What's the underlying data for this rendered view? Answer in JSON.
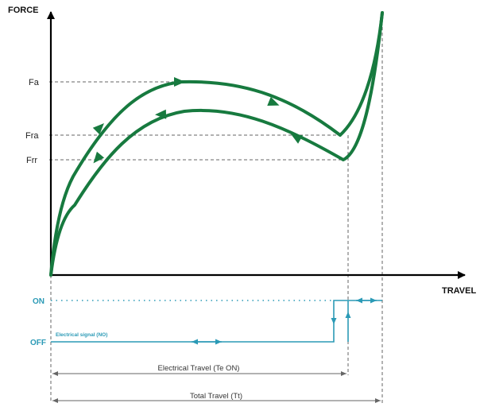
{
  "axes": {
    "y_label": "FORCE",
    "x_label": "TRAVEL"
  },
  "force_levels": {
    "fa": "Fa",
    "fra": "Fra",
    "frr": "Frr"
  },
  "switch_states": {
    "on": "ON",
    "off": "OFF"
  },
  "signal_label": "Electrical signal (NO)",
  "dimensions": {
    "electrical_travel": "Electrical Travel (Te ON)",
    "total_travel": "Total Travel (Tt)"
  },
  "colors": {
    "force_curve": "#177a3f",
    "electrical_signal": "#2b9ab6",
    "axis": "#000000",
    "guide_lines": "#666666"
  }
}
